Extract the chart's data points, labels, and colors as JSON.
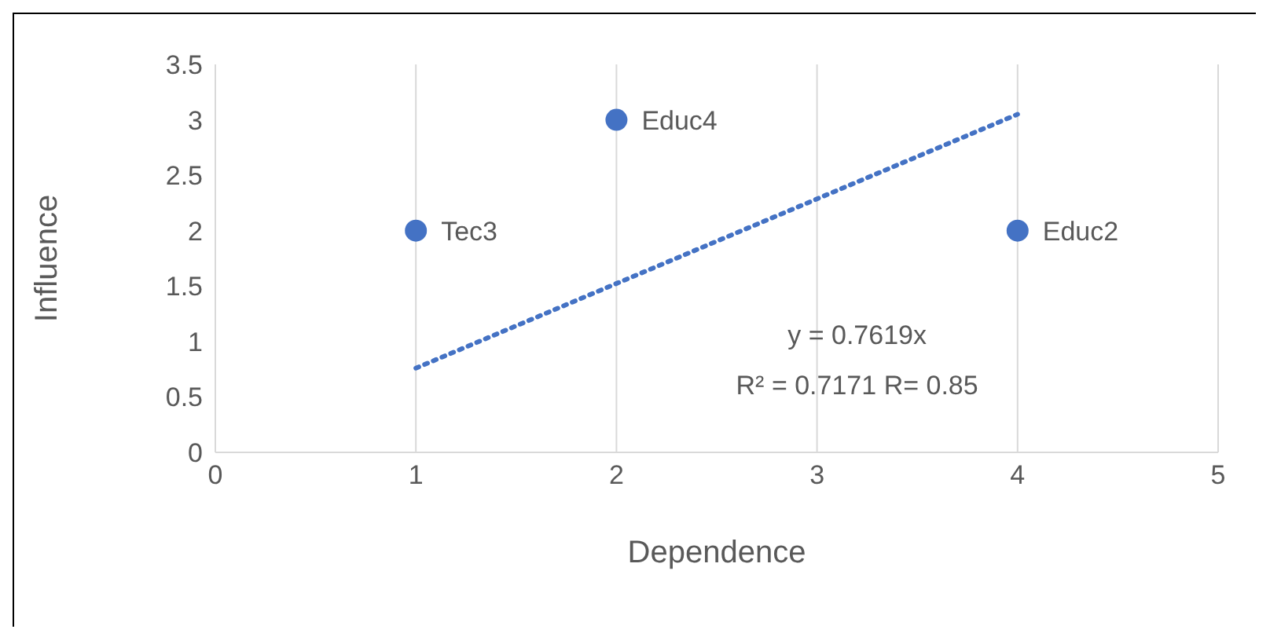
{
  "chart_data": {
    "type": "scatter",
    "xlabel": "Dependence",
    "ylabel": "Influence",
    "xlim": [
      0,
      5
    ],
    "xticks": [
      0,
      1,
      2,
      3,
      4,
      5
    ],
    "ylim": [
      0,
      3.5
    ],
    "yticks": [
      0,
      0.5,
      1,
      1.5,
      2,
      2.5,
      3,
      3.5
    ],
    "grid": "x",
    "marker": "circle",
    "series": [
      {
        "color": "#4472c4",
        "x": [
          1,
          2,
          4
        ],
        "values": [
          2,
          3,
          2
        ]
      },
      {
        "type": "line",
        "color": "#4472c4",
        "line_style": "dotted",
        "marker": "none",
        "x": [
          1,
          4
        ],
        "values": [
          0.76,
          3.05
        ]
      }
    ],
    "annotations": [
      {
        "text": "Tec3",
        "x": 1,
        "y": 2
      },
      {
        "text": "Educ4",
        "x": 2,
        "y": 3
      },
      {
        "text": "Educ2",
        "x": 4,
        "y": 2
      },
      "y = 0.7619x",
      "R² = 0.7171    R= 0.85"
    ]
  }
}
